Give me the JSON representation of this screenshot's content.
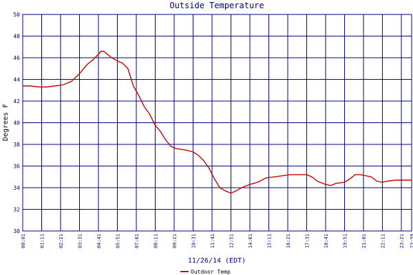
{
  "chart_data": {
    "type": "line",
    "title": "Outside Temperature",
    "xlabel": "11/26/14 (EDT)",
    "ylabel": "Degrees F",
    "ylim": [
      30,
      50
    ],
    "y_ticks": [
      30,
      32,
      34,
      36,
      38,
      40,
      42,
      44,
      46,
      48,
      50
    ],
    "x_ticks": [
      "00:01",
      "01:11",
      "02:21",
      "03:31",
      "04:41",
      "05:51",
      "07:01",
      "08:11",
      "09:21",
      "10:31",
      "11:41",
      "12:51",
      "14:01",
      "15:11",
      "16:21",
      "17:31",
      "18:41",
      "19:51",
      "21:01",
      "22:11",
      "23:21",
      "23:59"
    ],
    "grid": true,
    "legend_position": "bottom-left",
    "series": [
      {
        "name": "Outdoor Temp",
        "color": "#cc0000",
        "points": [
          [
            "00:01",
            43.4
          ],
          [
            "00:30",
            43.4
          ],
          [
            "01:00",
            43.3
          ],
          [
            "01:30",
            43.3
          ],
          [
            "02:00",
            43.4
          ],
          [
            "02:30",
            43.5
          ],
          [
            "03:00",
            43.8
          ],
          [
            "03:30",
            44.5
          ],
          [
            "04:00",
            45.4
          ],
          [
            "04:20",
            45.8
          ],
          [
            "04:40",
            46.3
          ],
          [
            "04:50",
            46.6
          ],
          [
            "05:00",
            46.6
          ],
          [
            "05:15",
            46.3
          ],
          [
            "05:30",
            46.0
          ],
          [
            "05:51",
            45.7
          ],
          [
            "06:10",
            45.5
          ],
          [
            "06:30",
            45.0
          ],
          [
            "06:50",
            43.4
          ],
          [
            "07:10",
            42.5
          ],
          [
            "07:30",
            41.5
          ],
          [
            "07:50",
            40.8
          ],
          [
            "08:10",
            39.8
          ],
          [
            "08:30",
            39.2
          ],
          [
            "08:50",
            38.4
          ],
          [
            "09:10",
            37.8
          ],
          [
            "09:30",
            37.6
          ],
          [
            "10:00",
            37.5
          ],
          [
            "10:31",
            37.3
          ],
          [
            "10:50",
            37.0
          ],
          [
            "11:10",
            36.5
          ],
          [
            "11:30",
            35.8
          ],
          [
            "11:50",
            34.8
          ],
          [
            "12:10",
            34.0
          ],
          [
            "12:30",
            33.7
          ],
          [
            "12:51",
            33.5
          ],
          [
            "13:10",
            33.7
          ],
          [
            "13:30",
            34.0
          ],
          [
            "14:01",
            34.3
          ],
          [
            "14:30",
            34.5
          ],
          [
            "15:00",
            34.9
          ],
          [
            "15:30",
            35.0
          ],
          [
            "16:00",
            35.1
          ],
          [
            "16:30",
            35.2
          ],
          [
            "17:00",
            35.2
          ],
          [
            "17:31",
            35.2
          ],
          [
            "17:50",
            35.0
          ],
          [
            "18:10",
            34.6
          ],
          [
            "18:41",
            34.3
          ],
          [
            "19:00",
            34.2
          ],
          [
            "19:20",
            34.4
          ],
          [
            "19:51",
            34.5
          ],
          [
            "20:10",
            34.8
          ],
          [
            "20:30",
            35.2
          ],
          [
            "20:50",
            35.2
          ],
          [
            "21:10",
            35.1
          ],
          [
            "21:30",
            35.0
          ],
          [
            "21:50",
            34.6
          ],
          [
            "22:11",
            34.5
          ],
          [
            "22:30",
            34.6
          ],
          [
            "23:00",
            34.7
          ],
          [
            "23:30",
            34.7
          ],
          [
            "23:59",
            34.7
          ]
        ]
      }
    ]
  }
}
